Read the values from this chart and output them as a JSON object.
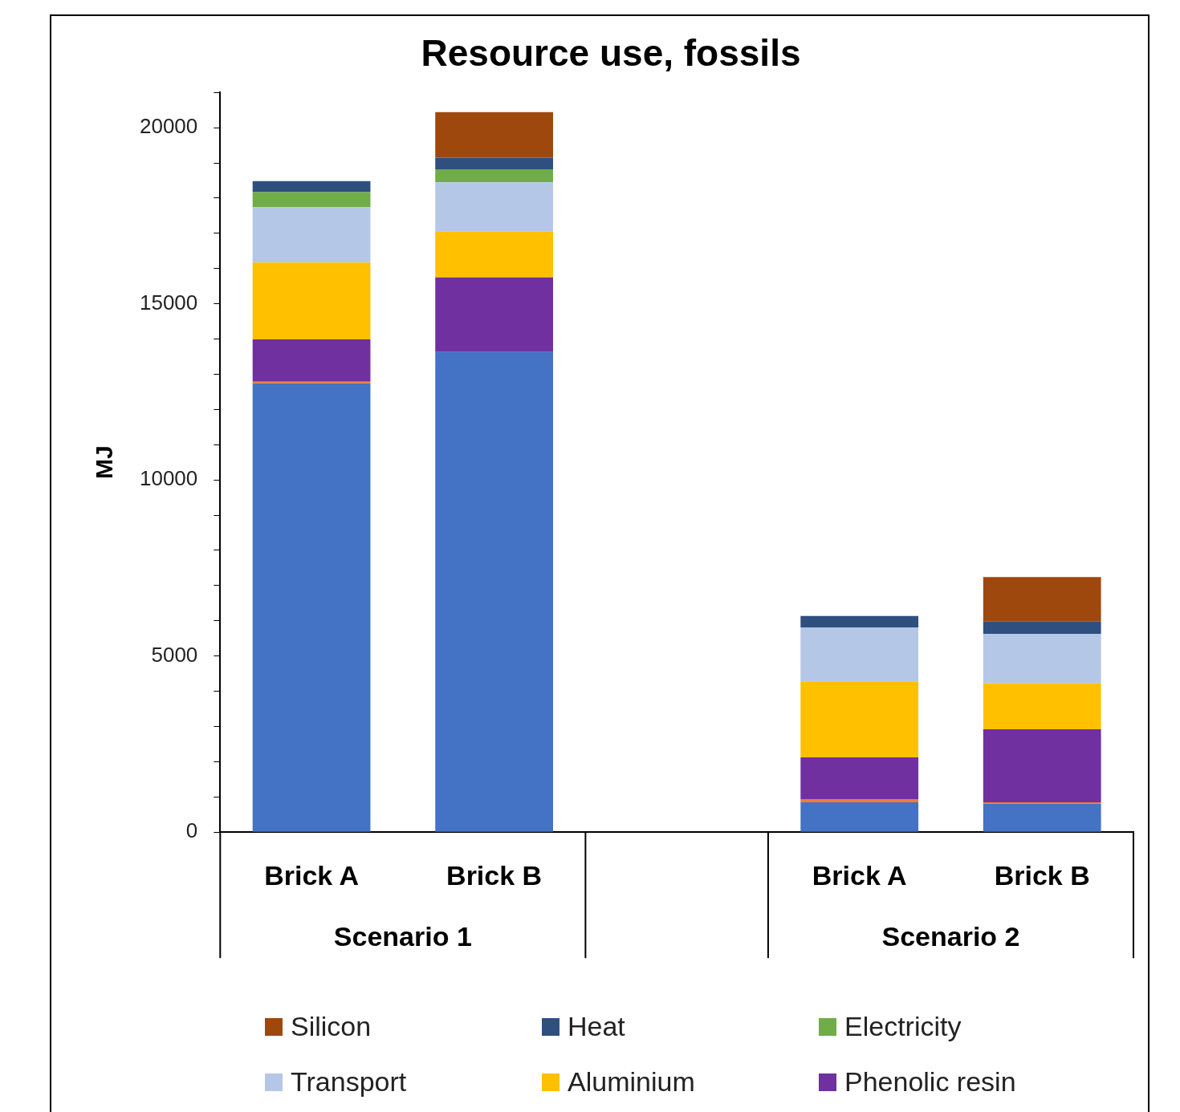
{
  "chart_data": {
    "type": "bar",
    "title": "Resource use, fossils",
    "ylabel": "MJ",
    "stacked": true,
    "categories": [
      "Brick A",
      "Brick B",
      null,
      "Brick A",
      "Brick B"
    ],
    "annotations": [
      "Scenario 1",
      "Scenario 2"
    ],
    "series": [
      {
        "color": "#4472c4",
        "values": [
          12740,
          13630,
          null,
          850,
          810
        ]
      },
      {
        "color": "#ed7d31",
        "values": [
          50,
          null,
          null,
          90,
          40
        ]
      },
      {
        "name": "Phenolic resin",
        "color": "#7030a0",
        "values": [
          1200,
          2120,
          null,
          1180,
          2070
        ]
      },
      {
        "name": "Aluminium",
        "color": "#ffc000",
        "values": [
          2180,
          1310,
          null,
          2160,
          1310
        ]
      },
      {
        "name": "Transport",
        "color": "#b4c7e7",
        "values": [
          1570,
          1390,
          null,
          1530,
          1400
        ]
      },
      {
        "name": "Electricity",
        "color": "#70ad47",
        "values": [
          430,
          370,
          null,
          null,
          null
        ]
      },
      {
        "name": "Heat",
        "color": "#2f4f7f",
        "values": [
          310,
          330,
          null,
          330,
          350
        ]
      },
      {
        "name": "Silicon",
        "color": "#9e480e",
        "values": [
          null,
          1290,
          null,
          null,
          1260
        ]
      }
    ],
    "ylim": [
      0,
      21000
    ],
    "yticks": [
      0,
      {
        "value": 1000,
        "label": null
      },
      {
        "value": 2000,
        "label": null
      },
      {
        "value": 3000,
        "label": null
      },
      {
        "value": 4000,
        "label": null
      },
      5000,
      {
        "value": 6000,
        "label": null
      },
      {
        "value": 7000,
        "label": null
      },
      {
        "value": 8000,
        "label": null
      },
      {
        "value": 9000,
        "label": null
      },
      10000,
      {
        "value": 11000,
        "label": null
      },
      {
        "value": 12000,
        "label": null
      },
      {
        "value": 13000,
        "label": null
      },
      {
        "value": 14000,
        "label": null
      },
      15000,
      {
        "value": 16000,
        "label": null
      },
      {
        "value": 17000,
        "label": null
      },
      {
        "value": 18000,
        "label": null
      },
      {
        "value": 19000,
        "label": null
      },
      20000,
      {
        "value": 21000,
        "label": null
      }
    ],
    "grid": false,
    "legend": "bottom"
  }
}
